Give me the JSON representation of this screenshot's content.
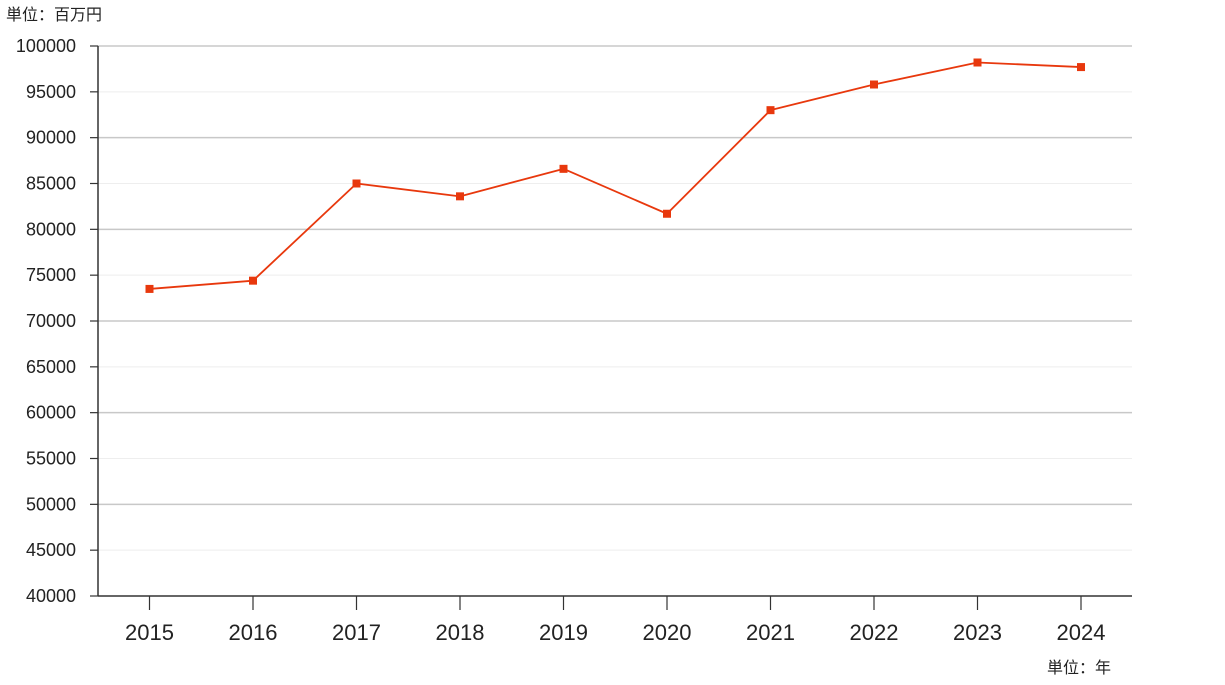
{
  "chart_data": {
    "type": "line",
    "y_unit_label": "単位：百万円",
    "x_unit_label": "単位：年",
    "categories": [
      "2015",
      "2016",
      "2017",
      "2018",
      "2019",
      "2020",
      "2021",
      "2022",
      "2023",
      "2024"
    ],
    "series": [
      {
        "values": [
          73500,
          74400,
          85000,
          83600,
          86600,
          81700,
          93000,
          95800,
          98200,
          97700
        ]
      }
    ],
    "ylim": [
      40000,
      100000
    ],
    "yticks": [
      40000,
      45000,
      50000,
      55000,
      60000,
      65000,
      70000,
      75000,
      80000,
      85000,
      90000,
      95000,
      100000
    ],
    "grid": true,
    "colors": {
      "line": "#e8380d",
      "grid_major": "#c8c8c8",
      "grid_minor": "#eeeeee",
      "axis": "#333333"
    }
  }
}
